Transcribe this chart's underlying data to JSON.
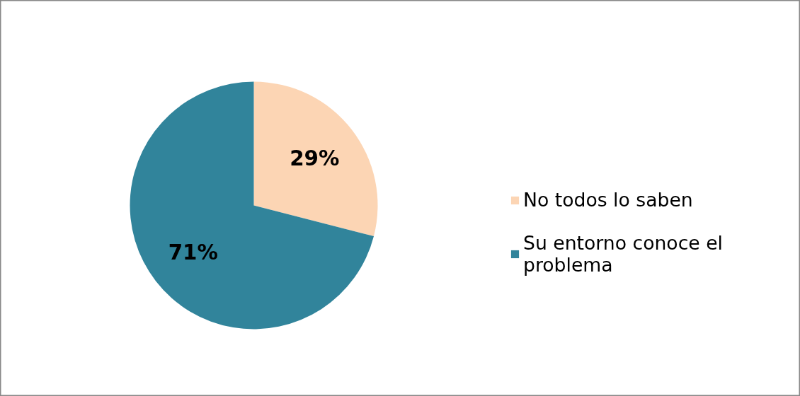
{
  "chart_data": {
    "type": "pie",
    "categories": [
      "No todos lo saben",
      "Su entorno conoce el problema"
    ],
    "values": [
      29,
      71
    ],
    "colors": [
      "#fcd5b4",
      "#31849b"
    ],
    "value_labels": [
      "29%",
      "71%"
    ],
    "legend": "right"
  }
}
